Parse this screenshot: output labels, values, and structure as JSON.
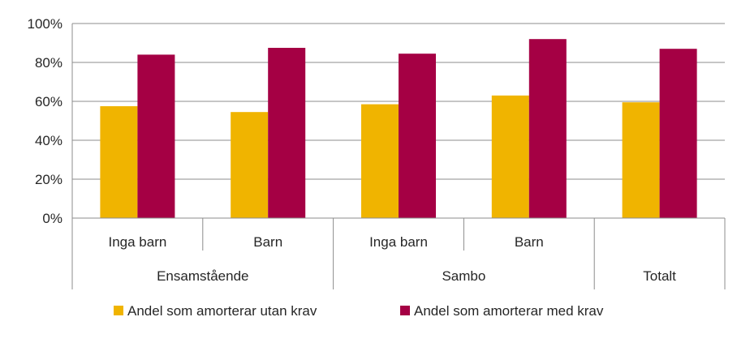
{
  "chart_data": {
    "type": "bar",
    "title": "",
    "xlabel": "",
    "ylabel": "",
    "ylim": [
      0,
      100
    ],
    "yticks": [
      "0%",
      "20%",
      "40%",
      "60%",
      "80%",
      "100%"
    ],
    "yticks_values": [
      0,
      20,
      40,
      60,
      80,
      100
    ],
    "grid": true,
    "legend_position": "bottom",
    "groups": [
      {
        "label": "Ensamstående",
        "categories": [
          "Inga barn",
          "Barn"
        ]
      },
      {
        "label": "Sambo",
        "categories": [
          "Inga barn",
          "Barn"
        ]
      },
      {
        "label": "Totalt",
        "categories": [
          ""
        ]
      }
    ],
    "categories": [
      "Inga barn",
      "Barn",
      "Inga barn",
      "Barn",
      ""
    ],
    "series": [
      {
        "name": "Andel som amorterar utan krav",
        "color": "#F0B400",
        "values": [
          57.5,
          54.5,
          58.5,
          63,
          59.5
        ]
      },
      {
        "name": "Andel som amorterar med krav",
        "color": "#A50044",
        "values": [
          84,
          87.5,
          84.5,
          92,
          87
        ]
      }
    ]
  }
}
